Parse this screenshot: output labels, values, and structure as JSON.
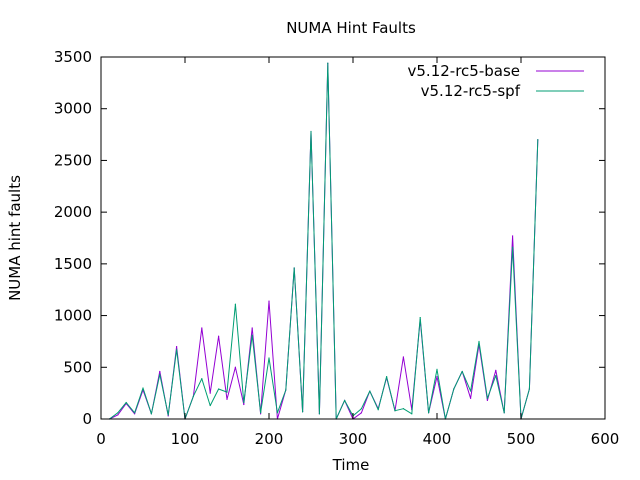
{
  "chart_data": {
    "type": "line",
    "title": "NUMA Hint Faults",
    "xlabel": "Time",
    "ylabel": "NUMA hint faults",
    "xlim": [
      0,
      600
    ],
    "ylim": [
      0,
      3500
    ],
    "xticks": [
      0,
      100,
      200,
      300,
      400,
      500,
      600
    ],
    "yticks": [
      0,
      500,
      1000,
      1500,
      2000,
      2500,
      3000,
      3500
    ],
    "grid": false,
    "legend": "top-right",
    "series": [
      {
        "name": "v5.12-rc5-base",
        "color": "#9400d3",
        "x": [
          10,
          20,
          30,
          40,
          50,
          60,
          70,
          80,
          90,
          100,
          110,
          120,
          130,
          140,
          150,
          160,
          170,
          180,
          190,
          200,
          210,
          220,
          230,
          240,
          250,
          260,
          270,
          280,
          290,
          300,
          310,
          320,
          330,
          340,
          350,
          360,
          370,
          380,
          390,
          400,
          410,
          420,
          430,
          440,
          450,
          460,
          470,
          480,
          490,
          500,
          510,
          520
        ],
        "y": [
          0,
          40,
          150,
          50,
          280,
          50,
          460,
          30,
          700,
          0,
          220,
          880,
          250,
          800,
          190,
          500,
          140,
          880,
          50,
          1140,
          0,
          280,
          1460,
          70,
          2780,
          50,
          3440,
          0,
          180,
          0,
          60,
          270,
          100,
          400,
          80,
          600,
          90,
          960,
          60,
          410,
          0,
          290,
          460,
          200,
          720,
          180,
          470,
          60,
          1770,
          0,
          290,
          2700
        ]
      },
      {
        "name": "v5.12-rc5-spf",
        "color": "#009e73",
        "x": [
          10,
          20,
          30,
          40,
          50,
          60,
          70,
          80,
          90,
          100,
          110,
          120,
          130,
          140,
          150,
          160,
          170,
          180,
          190,
          200,
          210,
          220,
          230,
          240,
          250,
          260,
          270,
          280,
          290,
          300,
          310,
          320,
          330,
          340,
          350,
          360,
          370,
          380,
          390,
          400,
          410,
          420,
          430,
          440,
          450,
          460,
          470,
          480,
          490,
          500,
          510,
          520
        ],
        "y": [
          0,
          60,
          160,
          60,
          300,
          50,
          430,
          40,
          670,
          0,
          220,
          390,
          130,
          290,
          260,
          1110,
          160,
          810,
          60,
          590,
          60,
          280,
          1460,
          70,
          2780,
          50,
          3440,
          0,
          180,
          30,
          100,
          270,
          90,
          410,
          80,
          100,
          50,
          980,
          60,
          480,
          0,
          290,
          460,
          270,
          750,
          200,
          420,
          60,
          1660,
          0,
          290,
          2700
        ]
      }
    ]
  }
}
